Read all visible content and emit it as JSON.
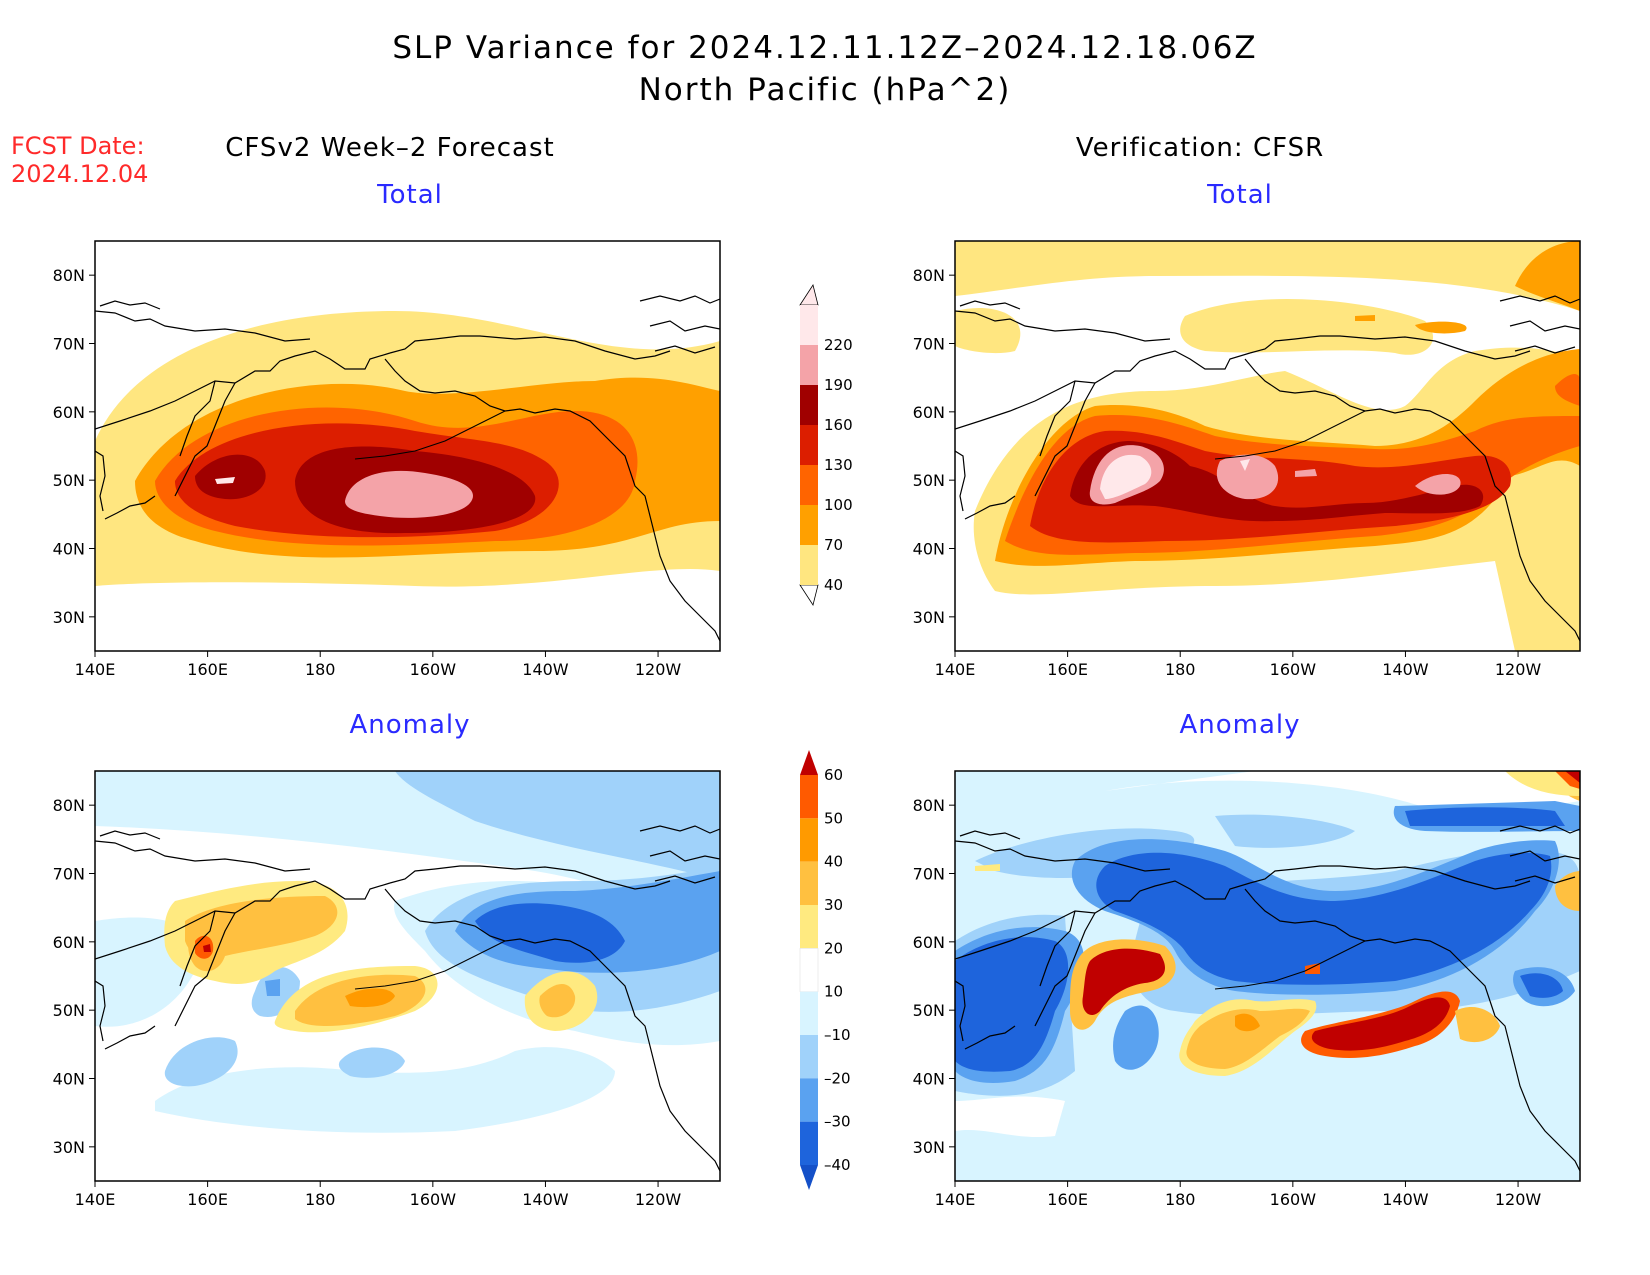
{
  "header": {
    "title_line1": "SLP Variance for 2024.12.11.12Z–2024.12.18.06Z",
    "title_line2": "North Pacific (hPa^2)"
  },
  "fcst": {
    "label": "FCST Date:",
    "date": "2024.12.04"
  },
  "columns": {
    "left_title": "CFSv2 Week–2 Forecast",
    "right_title": "Verification: CFSR"
  },
  "panels": [
    {
      "id": "fcst-total",
      "subtitle": "Total",
      "field": "total"
    },
    {
      "id": "verif-total",
      "subtitle": "Total",
      "field": "total"
    },
    {
      "id": "fcst-anomaly",
      "subtitle": "Anomaly",
      "field": "anomaly"
    },
    {
      "id": "verif-anomaly",
      "subtitle": "Anomaly",
      "field": "anomaly"
    }
  ],
  "axes": {
    "lat_labels": [
      "80N",
      "70N",
      "60N",
      "50N",
      "40N",
      "30N"
    ],
    "lon_labels": [
      "140E",
      "160E",
      "180",
      "160W",
      "140W",
      "120W"
    ]
  },
  "colorbars": {
    "total": {
      "levels": [
        "40",
        "70",
        "100",
        "130",
        "160",
        "190",
        "220"
      ],
      "colors": [
        "#ffe680",
        "#ffa000",
        "#ff6400",
        "#dc1e00",
        "#a00000",
        "#f4a3a8",
        "#ffe8ea"
      ]
    },
    "anomaly": {
      "levels": [
        "60",
        "50",
        "40",
        "30",
        "20",
        "10",
        "–10",
        "–20",
        "–30",
        "–40"
      ],
      "colors": [
        "#c00000",
        "#ff5a00",
        "#ff9a00",
        "#ffc040",
        "#ffea80",
        "#ffffff",
        "#d8f4ff",
        "#a0d2fa",
        "#5aa2f0",
        "#1e64dc",
        "#1450c8"
      ]
    }
  },
  "colors": {
    "title_red": "#ff2a2a",
    "subtitle_blue": "#2a2aff",
    "coastline": "#000000"
  }
}
